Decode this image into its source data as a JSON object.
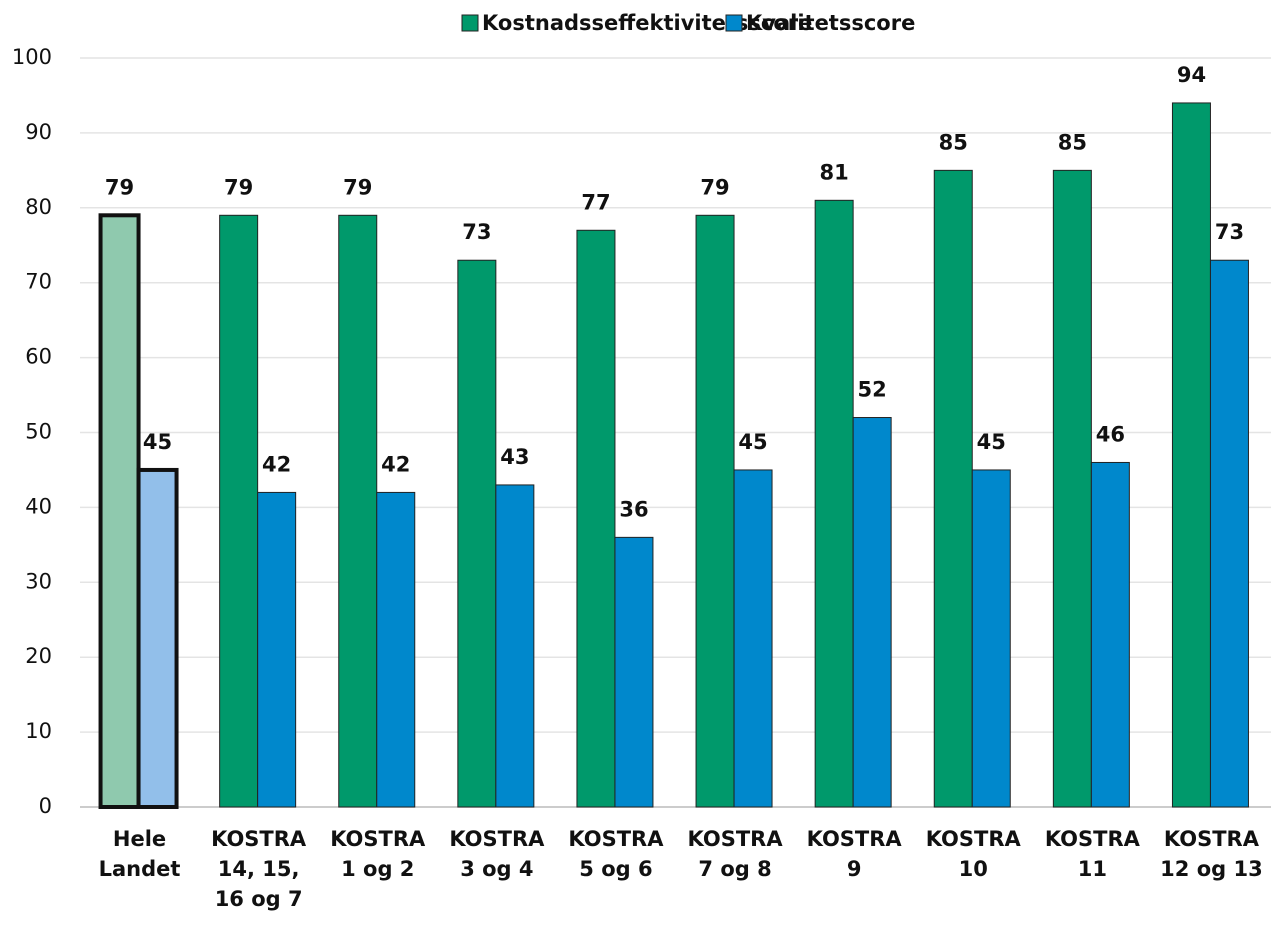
{
  "chart_data": {
    "type": "bar",
    "categories": [
      "Hele\nLandet",
      "KOSTRA\n14, 15,\n16 og 7",
      "KOSTRA\n1 og 2",
      "KOSTRA\n3 og 4",
      "KOSTRA\n5 og 6",
      "KOSTRA\n7 og 8",
      "KOSTRA\n9",
      "KOSTRA\n10",
      "KOSTRA\n11",
      "KOSTRA\n12 og 13"
    ],
    "series": [
      {
        "name": "Kostnadsseffektivitetsscore",
        "color": "#00996b",
        "colors": [
          "#8fc9ae",
          "#00996b",
          "#00996b",
          "#00996b",
          "#00996b",
          "#00996b",
          "#00996b",
          "#00996b",
          "#00996b",
          "#00996b"
        ],
        "values": [
          79,
          79,
          79,
          73,
          77,
          79,
          81,
          85,
          85,
          94
        ]
      },
      {
        "name": "Kvalitetsscore",
        "color": "#0088cc",
        "colors": [
          "#92bfea",
          "#0088cc",
          "#0088cc",
          "#0088cc",
          "#0088cc",
          "#0088cc",
          "#0088cc",
          "#0088cc",
          "#0088cc",
          "#0088cc"
        ],
        "values": [
          45,
          42,
          42,
          43,
          36,
          45,
          52,
          45,
          46,
          73
        ]
      }
    ],
    "ylim": [
      0,
      100
    ],
    "yticks": [
      0,
      10,
      20,
      30,
      40,
      50,
      60,
      70,
      80,
      90,
      100
    ],
    "grid": true,
    "legend": "top"
  }
}
